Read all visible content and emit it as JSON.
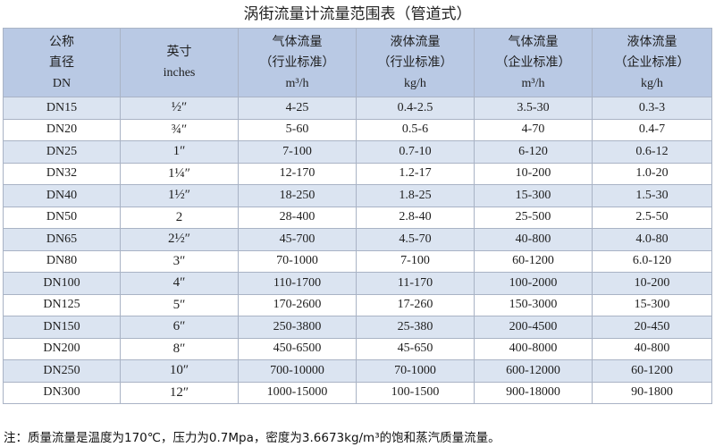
{
  "title": "涡街流量计流量范围表（管道式）",
  "headers": {
    "col1": [
      "公称",
      "直径",
      "DN"
    ],
    "col2": [
      "英寸",
      "inches"
    ],
    "col3": [
      "气体流量",
      "（行业标准）",
      "m³/h"
    ],
    "col4": [
      "液体流量",
      "（行业标准）",
      "kg/h"
    ],
    "col5": [
      "气体流量",
      "（企业标准）",
      "m³/h"
    ],
    "col6": [
      "液体流量",
      "（企业标准）",
      "kg/h"
    ]
  },
  "rows": [
    [
      "DN15",
      "½″",
      "4-25",
      "0.4-2.5",
      "3.5-30",
      "0.3-3"
    ],
    [
      "DN20",
      "¾″",
      "5-60",
      "0.5-6",
      "4-70",
      "0.4-7"
    ],
    [
      "DN25",
      "1″",
      "7-100",
      "0.7-10",
      "6-120",
      "0.6-12"
    ],
    [
      "DN32",
      "1¼″",
      "12-170",
      "1.2-17",
      "10-200",
      "1.0-20"
    ],
    [
      "DN40",
      "1½″",
      "18-250",
      "1.8-25",
      "15-300",
      "1.5-30"
    ],
    [
      "DN50",
      "2",
      "28-400",
      "2.8-40",
      "25-500",
      "2.5-50"
    ],
    [
      "DN65",
      "2½″",
      "45-700",
      "4.5-70",
      "40-800",
      "4.0-80"
    ],
    [
      "DN80",
      "3″",
      "70-1000",
      "7-100",
      "60-1200",
      "6.0-120"
    ],
    [
      "DN100",
      "4″",
      "110-1700",
      "11-170",
      "100-2000",
      "10-200"
    ],
    [
      "DN125",
      "5″",
      "170-2600",
      "17-260",
      "150-3000",
      "15-300"
    ],
    [
      "DN150",
      "6″",
      "250-3800",
      "25-380",
      "200-4500",
      "20-450"
    ],
    [
      "DN200",
      "8″",
      "450-6500",
      "45-650",
      "400-8000",
      "40-800"
    ],
    [
      "DN250",
      "10″",
      "700-10000",
      "70-1000",
      "600-12000",
      "60-1200"
    ],
    [
      "DN300",
      "12″",
      "1000-15000",
      "100-1500",
      "900-18000",
      "90-1800"
    ]
  ],
  "note": "注：质量流量是温度为170℃，压力为0.7Mpa，密度为3.6673kg/m³的饱和蒸汽质量流量。",
  "colors": {
    "header_bg": "#b9c9e4",
    "odd_row_bg": "#dbe4f1",
    "even_row_bg": "#ffffff",
    "border": "#a9b3c5"
  }
}
